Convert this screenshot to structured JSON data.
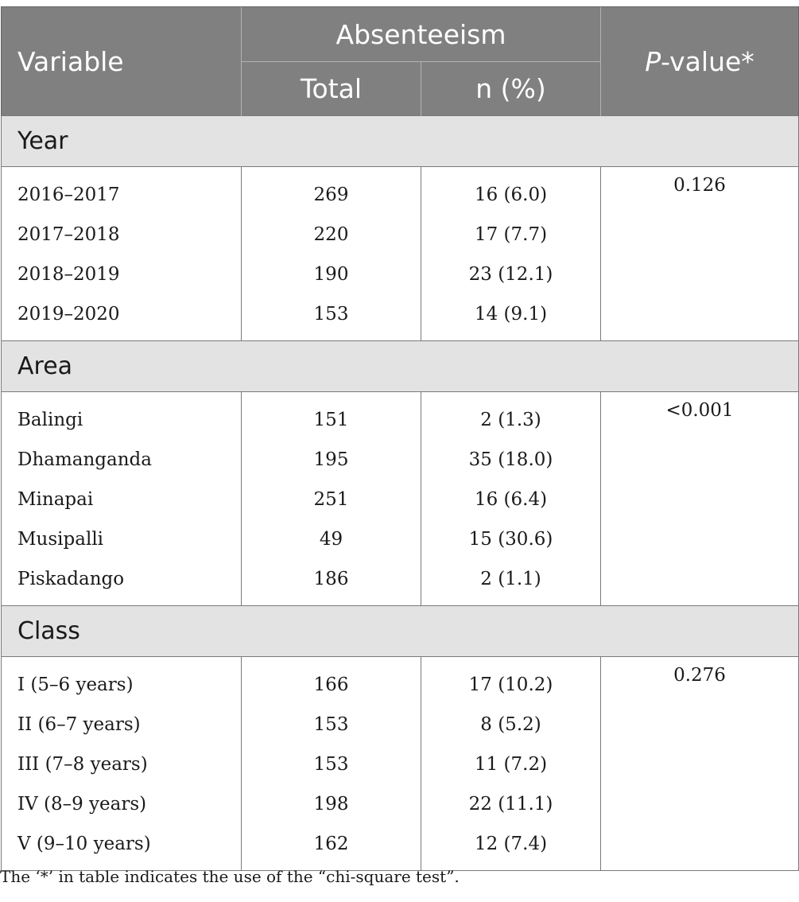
{
  "header": {
    "variable": "Variable",
    "absenteeism": "Absenteeism",
    "p_italic": "P",
    "p_rest": "-value*",
    "total": "Total",
    "n_pct": "n (%)"
  },
  "sections": [
    {
      "title": "Year",
      "p_value": "0.126",
      "rows": [
        {
          "label": "2016–2017",
          "total": "269",
          "n": "16 (6.0)"
        },
        {
          "label": "2017–2018",
          "total": "220",
          "n": "17 (7.7)"
        },
        {
          "label": "2018–2019",
          "total": "190",
          "n": "23 (12.1)"
        },
        {
          "label": "2019–2020",
          "total": "153",
          "n": "14 (9.1)"
        }
      ]
    },
    {
      "title": "Area",
      "p_value": "<0.001",
      "rows": [
        {
          "label": "Balingi",
          "total": "151",
          "n": "2 (1.3)"
        },
        {
          "label": "Dhamanganda",
          "total": "195",
          "n": "35 (18.0)"
        },
        {
          "label": "Minapai",
          "total": "251",
          "n": "16 (6.4)"
        },
        {
          "label": "Musipalli",
          "total": "49",
          "n": "15 (30.6)"
        },
        {
          "label": "Piskadango",
          "total": "186",
          "n": "2 (1.1)"
        }
      ]
    },
    {
      "title": "Class",
      "p_value": "0.276",
      "rows": [
        {
          "label": "I (5–6 years)",
          "total": "166",
          "n": "17 (10.2)"
        },
        {
          "label": "II (6–7 years)",
          "total": "153",
          "n": "8 (5.2)"
        },
        {
          "label": "III (7–8 years)",
          "total": "153",
          "n": "11 (7.2)"
        },
        {
          "label": "IV (8–9 years)",
          "total": "198",
          "n": "22 (11.1)"
        },
        {
          "label": "V (9–10 years)",
          "total": "162",
          "n": "12 (7.4)"
        }
      ]
    }
  ],
  "footnote": "The ‘*’ in table indicates the use of the “chi-square test”."
}
